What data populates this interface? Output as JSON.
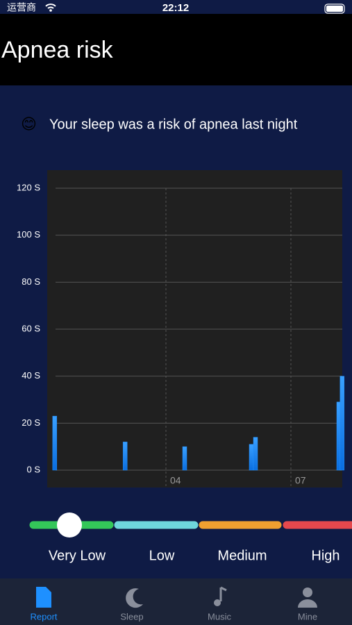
{
  "status_bar": {
    "carrier": "运营商",
    "time": "22:12"
  },
  "header": {
    "title": "Apnea risk"
  },
  "message": {
    "emoji": "😊",
    "text": "Your sleep was a risk of apnea last night"
  },
  "chart_data": {
    "type": "bar",
    "x": [
      1.33,
      3.02,
      4.45,
      6.05,
      6.15,
      8.15,
      8.23
    ],
    "values": [
      23,
      12,
      10,
      11,
      14,
      29,
      40
    ],
    "color": "#1e90ff",
    "xlim": [
      1.25,
      8.25
    ],
    "xticks": [
      {
        "value": 4,
        "label": "04"
      },
      {
        "value": 7,
        "label": "07"
      }
    ],
    "ylim": [
      0,
      120
    ],
    "yticks": [
      {
        "value": 0,
        "label": "0 S"
      },
      {
        "value": 20,
        "label": "20 S"
      },
      {
        "value": 40,
        "label": "40 S"
      },
      {
        "value": 60,
        "label": "60 S"
      },
      {
        "value": 80,
        "label": "80 S"
      },
      {
        "value": 100,
        "label": "100 S"
      },
      {
        "value": 120,
        "label": "120 S"
      }
    ],
    "grid": true
  },
  "risk_scale": {
    "levels": [
      {
        "label": "Very Low",
        "color": "#34c759"
      },
      {
        "label": "Low",
        "color": "#6fd6dc"
      },
      {
        "label": "Medium",
        "color": "#f0a030"
      },
      {
        "label": "High",
        "color": "#e5484d"
      }
    ]
  },
  "tab_bar": {
    "tabs": [
      "Report",
      "Sleep",
      "Music",
      "Mine"
    ]
  }
}
